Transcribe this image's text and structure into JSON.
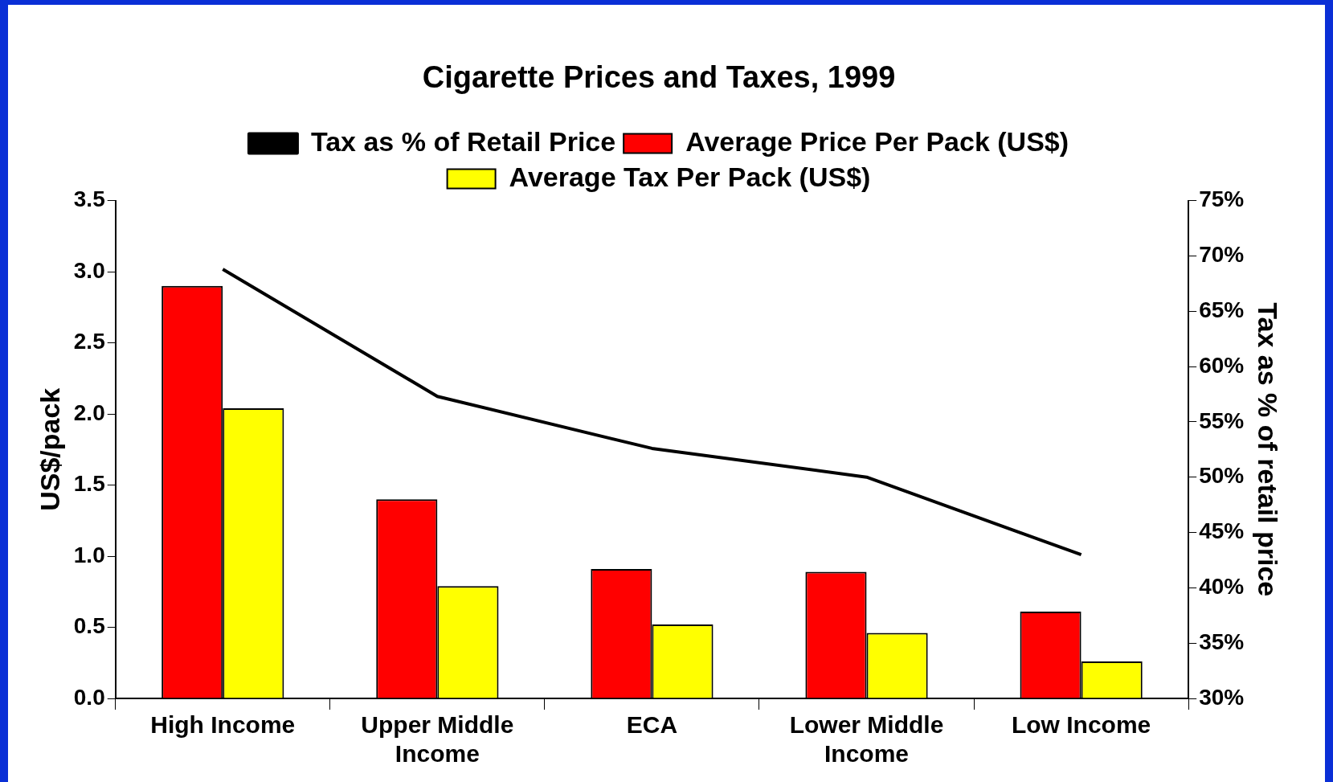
{
  "chart_data": {
    "type": "bar",
    "title": "Cigarette Prices and Taxes, 1999",
    "ylabel": "US$/pack",
    "y2label": "Tax as % of retail price",
    "categories": [
      "High Income",
      "Upper Middle Income",
      "ECA",
      "Lower Middle Income",
      "Low Income"
    ],
    "series": [
      {
        "name": "Average Price Per Pack (US$)",
        "color": "#ff0000",
        "values": [
          2.9,
          1.4,
          0.91,
          0.89,
          0.61
        ]
      },
      {
        "name": "Average Tax Per Pack (US$)",
        "color": "#ffff00",
        "values": [
          2.04,
          0.79,
          0.52,
          0.46,
          0.26
        ]
      },
      {
        "name": "Tax as % of Retail Price",
        "type": "line",
        "axis": "y2",
        "color": "#000000",
        "values": [
          68.8,
          57.3,
          52.6,
          50.0,
          43.0
        ]
      }
    ],
    "ylim": [
      0,
      3.5
    ],
    "yticks": [
      {
        "value": 0,
        "label": "0.0"
      },
      {
        "value": 0.5,
        "label": "0.5"
      },
      {
        "value": 1,
        "label": "1.0"
      },
      {
        "value": 1.5,
        "label": "1.5"
      },
      {
        "value": 2,
        "label": "2.0"
      },
      {
        "value": 2.5,
        "label": "2.5"
      },
      {
        "value": 3,
        "label": "3.0"
      },
      {
        "value": 3.5,
        "label": "3.5"
      }
    ],
    "y2lim": [
      30,
      75
    ],
    "y2ticks": [
      {
        "value": 30,
        "label": "30%"
      },
      {
        "value": 35,
        "label": "35%"
      },
      {
        "value": 40,
        "label": "40%"
      },
      {
        "value": 45,
        "label": "45%"
      },
      {
        "value": 50,
        "label": "50%"
      },
      {
        "value": 55,
        "label": "55%"
      },
      {
        "value": 60,
        "label": "60%"
      },
      {
        "value": 65,
        "label": "65%"
      },
      {
        "value": 70,
        "label": "70%"
      },
      {
        "value": 75,
        "label": "75%"
      }
    ],
    "grid": false,
    "legend": "top",
    "marker": "none",
    "line_style": "solid"
  }
}
